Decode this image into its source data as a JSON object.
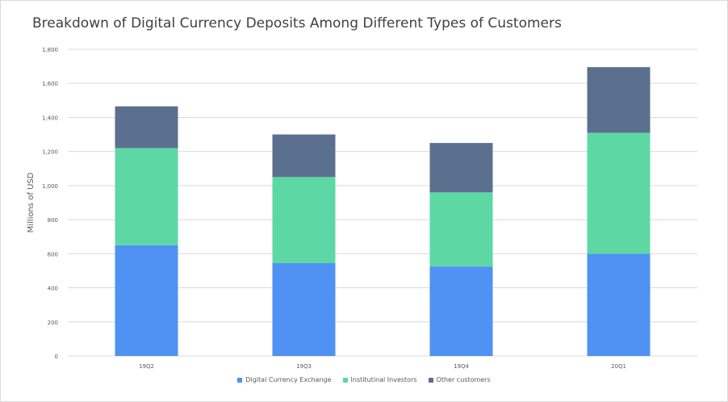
{
  "chart_data": {
    "type": "bar",
    "stacked": true,
    "title": "Breakdown of Digital Currency Deposits Among Different Types of Customers",
    "ylabel": "Millions of USD",
    "xlabel": "",
    "ylim": [
      0,
      1800
    ],
    "yticks": [
      0,
      200,
      400,
      600,
      800,
      1000,
      1200,
      1400,
      1600,
      1800
    ],
    "ytick_labels": [
      "0",
      "200",
      "400",
      "600",
      "800",
      "1,000",
      "1,200",
      "1,400",
      "1,600",
      "1,800"
    ],
    "categories": [
      "19Q2",
      "19Q3",
      "19Q4",
      "20Q1"
    ],
    "series": [
      {
        "name": "Digital Currency Exchange",
        "values": [
          650,
          545,
          525,
          600
        ],
        "color": "#4f92f3"
      },
      {
        "name": "Institutinal Investors",
        "values": [
          570,
          505,
          435,
          710
        ],
        "color": "#5dd8a5"
      },
      {
        "name": "Other customers",
        "values": [
          245,
          250,
          290,
          385
        ],
        "color": "#5b708f"
      }
    ],
    "grid": true,
    "legend_position": "bottom"
  },
  "colors": {
    "gridline": "#d9d9d9",
    "axis_text": "#595959"
  }
}
